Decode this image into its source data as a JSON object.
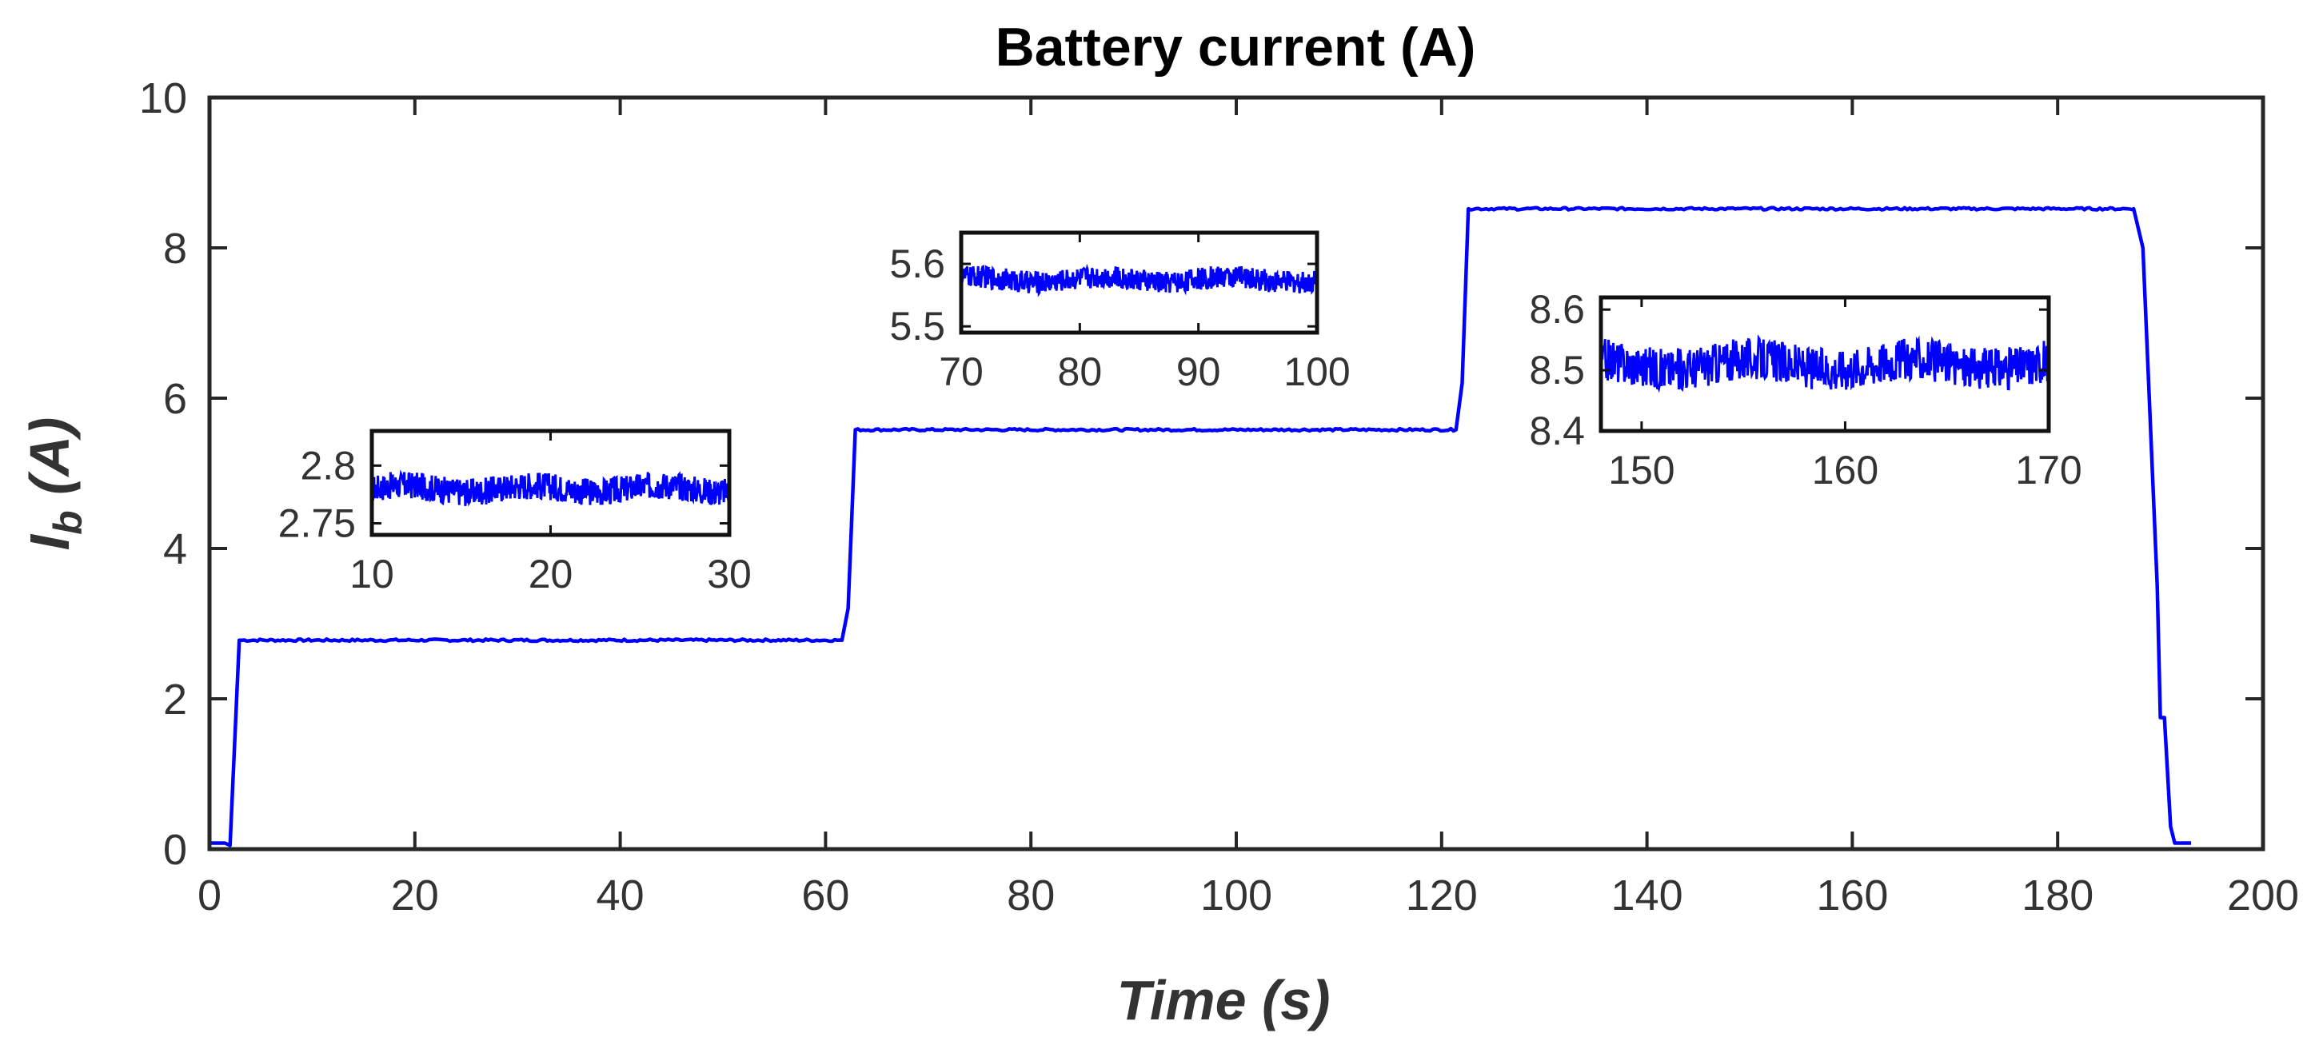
{
  "chart_data": {
    "type": "line",
    "title": "Battery current (A)",
    "xlabel": "Time (s)",
    "ylabel": {
      "main": "I",
      "sub": "b",
      "unit": " (A)"
    },
    "xlim": [
      0,
      200
    ],
    "ylim": [
      0,
      10
    ],
    "xticks": [
      0,
      20,
      40,
      60,
      80,
      100,
      120,
      140,
      160,
      180,
      200
    ],
    "yticks": [
      0,
      2,
      4,
      6,
      8,
      10
    ],
    "grid": false,
    "colors": {
      "series": "#0000ff",
      "axis": "#262626",
      "text": "#333333"
    },
    "series": [
      {
        "points": [
          [
            0,
            0.08
          ],
          [
            1.5,
            0.08
          ],
          [
            2.0,
            0.05
          ],
          [
            2.9,
            2.78
          ],
          [
            61.6,
            2.78
          ],
          [
            62.2,
            3.2
          ],
          [
            62.9,
            5.58
          ],
          [
            121.4,
            5.58
          ],
          [
            122.0,
            6.2
          ],
          [
            122.6,
            8.52
          ],
          [
            187.4,
            8.52
          ],
          [
            188.3,
            8.0
          ],
          [
            189.7,
            3.5
          ],
          [
            190.0,
            1.75
          ],
          [
            190.4,
            1.75
          ],
          [
            191.0,
            0.3
          ],
          [
            191.4,
            0.08
          ],
          [
            193.0,
            0.08
          ]
        ]
      }
    ],
    "insets": [
      {
        "xlim": [
          10,
          30
        ],
        "ylim": [
          2.74,
          2.83
        ],
        "xticks": [
          10,
          20,
          30
        ],
        "yticks": [
          2.75,
          2.8
        ],
        "ytick_labels": [
          "2.75",
          "2.8"
        ],
        "level": 2.78,
        "noise": 0.012
      },
      {
        "xlim": [
          70,
          100
        ],
        "ylim": [
          5.49,
          5.65
        ],
        "xticks": [
          70,
          80,
          90,
          100
        ],
        "yticks": [
          5.5,
          5.6
        ],
        "ytick_labels": [
          "5.5",
          "5.6"
        ],
        "level": 5.575,
        "noise": 0.018
      },
      {
        "xlim": [
          148,
          170
        ],
        "ylim": [
          8.4,
          8.62
        ],
        "xticks": [
          150,
          160,
          170
        ],
        "yticks": [
          8.4,
          8.5,
          8.6
        ],
        "ytick_labels": [
          "8.4",
          "8.5",
          "8.6"
        ],
        "level": 8.51,
        "noise": 0.035
      }
    ]
  }
}
